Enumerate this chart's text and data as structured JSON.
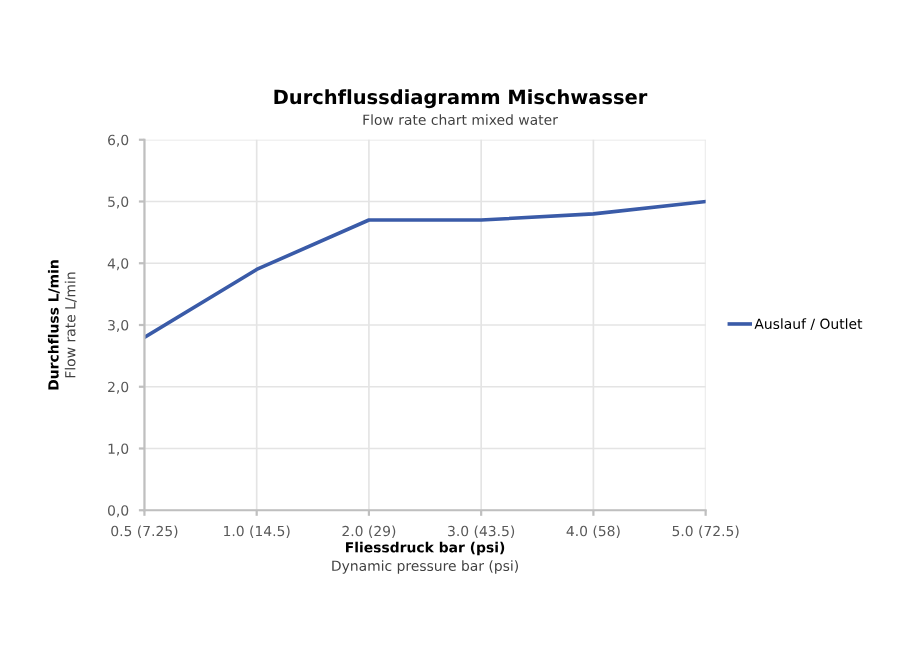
{
  "chart_data": {
    "type": "line",
    "title": "Durchflussdiagramm Mischwasser",
    "subtitle": "Flow rate chart mixed water",
    "xlabel": "Fliessdruck bar (psi)\nDynamic pressure bar (psi)",
    "ylabel": "Durchfluss L/min\nFlow rate L/min",
    "categories": [
      "0.5 (7.25)",
      "1.0 (14.5)",
      "2.0 (29)",
      "3.0 (43.5)",
      "4.0 (58)",
      "5.0 (72.5)"
    ],
    "series": [
      {
        "name": "Auslauf / Outlet",
        "color": "#3a5ba8",
        "values": [
          2.8,
          3.9,
          4.7,
          4.7,
          4.8,
          5.0
        ]
      }
    ],
    "ylim": [
      0,
      6
    ],
    "yticks": [
      {
        "value": 0,
        "label": "0,0"
      },
      {
        "value": 1,
        "label": "1,0"
      },
      {
        "value": 2,
        "label": "2,0"
      },
      {
        "value": 3,
        "label": "3,0"
      },
      {
        "value": 4,
        "label": "4,0"
      },
      {
        "value": 5,
        "label": "5,0"
      },
      {
        "value": 6,
        "label": "6,0"
      }
    ],
    "grid": true,
    "legend": "right",
    "marker": "none",
    "line_style": "solid"
  }
}
